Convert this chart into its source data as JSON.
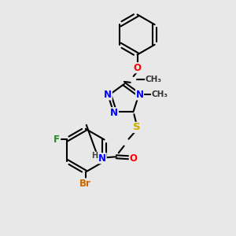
{
  "bg_color": "#e8e8e8",
  "bond_color": "#000000",
  "bond_width": 1.5,
  "atom_colors": {
    "N": "#0000ff",
    "O": "#ff0000",
    "S": "#ccaa00",
    "F": "#228822",
    "Br": "#cc6600",
    "C": "#000000",
    "H": "#444444"
  },
  "font_size": 8.5
}
